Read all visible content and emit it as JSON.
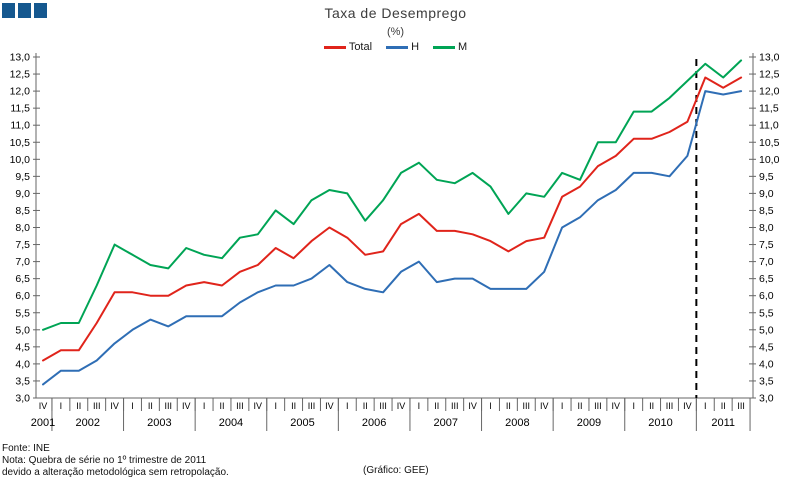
{
  "header": {
    "title": "Taxa de Desemprego",
    "subtitle": "(%)"
  },
  "footer": {
    "source": "Fonte: INE",
    "note_line1": "Nota: Quebra de série no 1º trimestre de 2011",
    "note_line2": "devido a alteração metodológica sem retropolação.",
    "credit": "(Gráfico: GEE)"
  },
  "colors": {
    "logo_blue": "#15588f",
    "axis": "#666666",
    "break_line": "#000000"
  },
  "chart_data": {
    "type": "line",
    "title": "Taxa de Desemprego",
    "subtitle": "(%)",
    "ylabel": "",
    "xlabel": "",
    "ylim": [
      3.0,
      13.0
    ],
    "ytick_step": 0.5,
    "grid": false,
    "legend_position": "top-center",
    "x_labels": [
      "IV",
      "I",
      "II",
      "III",
      "IV",
      "I",
      "II",
      "III",
      "IV",
      "I",
      "II",
      "III",
      "IV",
      "I",
      "II",
      "III",
      "IV",
      "I",
      "II",
      "III",
      "IV",
      "I",
      "II",
      "III",
      "IV",
      "I",
      "II",
      "III",
      "IV",
      "I",
      "II",
      "III",
      "IV",
      "I",
      "II",
      "III",
      "IV",
      "I",
      "II",
      "III"
    ],
    "years": [
      {
        "label": "2001",
        "quarters": 1
      },
      {
        "label": "2002",
        "quarters": 4
      },
      {
        "label": "2003",
        "quarters": 4
      },
      {
        "label": "2004",
        "quarters": 4
      },
      {
        "label": "2005",
        "quarters": 4
      },
      {
        "label": "2006",
        "quarters": 4
      },
      {
        "label": "2007",
        "quarters": 4
      },
      {
        "label": "2008",
        "quarters": 4
      },
      {
        "label": "2009",
        "quarters": 4
      },
      {
        "label": "2010",
        "quarters": 4
      },
      {
        "label": "2011",
        "quarters": 3
      }
    ],
    "series": [
      {
        "name": "Total",
        "color": "#e0241b",
        "values": [
          4.1,
          4.4,
          4.4,
          5.2,
          6.1,
          6.1,
          6.0,
          6.0,
          6.3,
          6.4,
          6.3,
          6.7,
          6.9,
          7.4,
          7.1,
          7.6,
          8.0,
          7.7,
          7.2,
          7.3,
          8.1,
          8.4,
          7.9,
          7.9,
          7.8,
          7.6,
          7.3,
          7.6,
          7.7,
          8.9,
          9.2,
          9.8,
          10.1,
          10.6,
          10.6,
          10.8,
          11.1,
          12.4,
          12.1,
          12.4
        ]
      },
      {
        "name": "H",
        "color": "#2f6eb5",
        "values": [
          3.4,
          3.8,
          3.8,
          4.1,
          4.6,
          5.0,
          5.3,
          5.1,
          5.4,
          5.4,
          5.4,
          5.8,
          6.1,
          6.3,
          6.3,
          6.5,
          6.9,
          6.4,
          6.2,
          6.1,
          6.7,
          7.0,
          6.4,
          6.5,
          6.5,
          6.2,
          6.2,
          6.2,
          6.7,
          8.0,
          8.3,
          8.8,
          9.1,
          9.6,
          9.6,
          9.5,
          10.1,
          12.0,
          11.9,
          12.0
        ]
      },
      {
        "name": "M",
        "color": "#00a455",
        "values": [
          5.0,
          5.2,
          5.2,
          6.3,
          7.5,
          7.2,
          6.9,
          6.8,
          7.4,
          7.2,
          7.1,
          7.7,
          7.8,
          8.5,
          8.1,
          8.8,
          9.1,
          9.0,
          8.2,
          8.8,
          9.6,
          9.9,
          9.4,
          9.3,
          9.6,
          9.2,
          8.4,
          9.0,
          8.9,
          9.6,
          9.4,
          10.5,
          10.5,
          11.4,
          11.4,
          11.8,
          12.3,
          12.8,
          12.4,
          12.9
        ]
      }
    ],
    "break_line": {
      "before_label_index": 37,
      "year": "2011",
      "style": "dashed",
      "color": "#000000"
    }
  }
}
